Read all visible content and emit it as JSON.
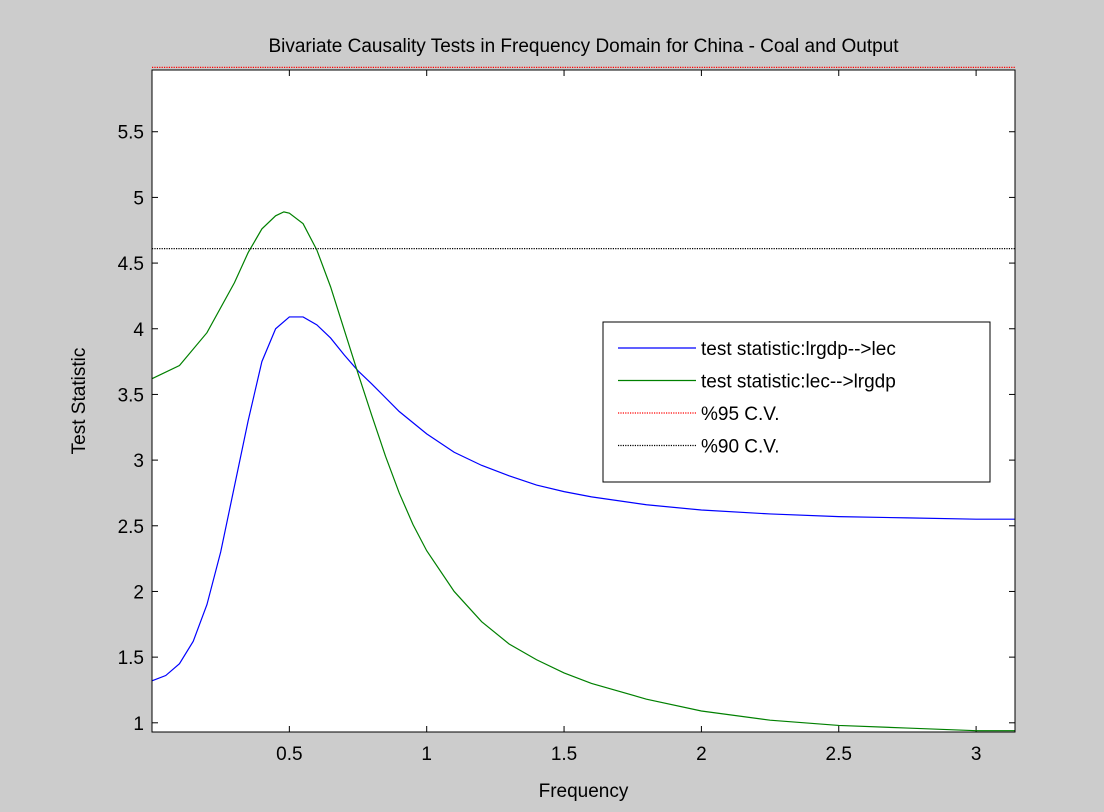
{
  "figure": {
    "background": "#cccccc"
  },
  "chart_data": {
    "type": "line",
    "title": "Bivariate Causality Tests in Frequency Domain for China - Coal and Output",
    "xlabel": "Frequency",
    "ylabel": "Test Statistic",
    "xlim": [
      0.0,
      3.1416
    ],
    "ylim": [
      0.93,
      5.97
    ],
    "xticks": [
      0.5,
      1,
      1.5,
      2,
      2.5,
      3
    ],
    "xtick_labels": [
      "0.5",
      "1",
      "1.5",
      "2",
      "2.5",
      "3"
    ],
    "yticks": [
      1,
      1.5,
      2,
      2.5,
      3,
      3.5,
      4,
      4.5,
      5,
      5.5
    ],
    "ytick_labels": [
      "1",
      "1.5",
      "2",
      "2.5",
      "3",
      "3.5",
      "4",
      "4.5",
      "5",
      "5.5"
    ],
    "grid": false,
    "legend_position": "right",
    "series": [
      {
        "name": "test statistic:lrgdp-->lec",
        "color": "#0000ff",
        "style": "solid",
        "x": [
          0.0,
          0.05,
          0.1,
          0.15,
          0.2,
          0.25,
          0.3,
          0.35,
          0.4,
          0.45,
          0.5,
          0.55,
          0.6,
          0.65,
          0.7,
          0.75,
          0.8,
          0.9,
          1.0,
          1.1,
          1.2,
          1.3,
          1.4,
          1.5,
          1.6,
          1.8,
          2.0,
          2.25,
          2.5,
          2.75,
          3.0,
          3.1416
        ],
        "y": [
          1.32,
          1.36,
          1.45,
          1.62,
          1.9,
          2.3,
          2.8,
          3.3,
          3.75,
          4.0,
          4.09,
          4.09,
          4.03,
          3.93,
          3.8,
          3.68,
          3.58,
          3.37,
          3.2,
          3.06,
          2.96,
          2.88,
          2.81,
          2.76,
          2.72,
          2.66,
          2.62,
          2.59,
          2.57,
          2.56,
          2.55,
          2.55
        ]
      },
      {
        "name": "test statistic:lec-->lrgdp",
        "color": "#008000",
        "style": "solid",
        "x": [
          0.0,
          0.1,
          0.2,
          0.3,
          0.35,
          0.4,
          0.45,
          0.48,
          0.5,
          0.55,
          0.6,
          0.65,
          0.7,
          0.75,
          0.8,
          0.85,
          0.9,
          0.95,
          1.0,
          1.1,
          1.2,
          1.3,
          1.4,
          1.5,
          1.6,
          1.8,
          2.0,
          2.25,
          2.5,
          2.75,
          3.0,
          3.1416
        ],
        "y": [
          3.62,
          3.72,
          3.97,
          4.35,
          4.58,
          4.76,
          4.86,
          4.89,
          4.88,
          4.8,
          4.6,
          4.32,
          3.99,
          3.66,
          3.34,
          3.03,
          2.75,
          2.51,
          2.31,
          2.0,
          1.77,
          1.6,
          1.48,
          1.38,
          1.3,
          1.18,
          1.09,
          1.02,
          0.98,
          0.96,
          0.94,
          0.94
        ]
      },
      {
        "name": "%95 C.V.",
        "color": "#ff0000",
        "style": "dotted",
        "x": [
          0.0,
          3.1416
        ],
        "y": [
          5.99,
          5.99
        ]
      },
      {
        "name": "%90 C.V.",
        "color": "#000000",
        "style": "dotted",
        "x": [
          0.0,
          3.1416
        ],
        "y": [
          4.61,
          4.61
        ]
      }
    ]
  }
}
